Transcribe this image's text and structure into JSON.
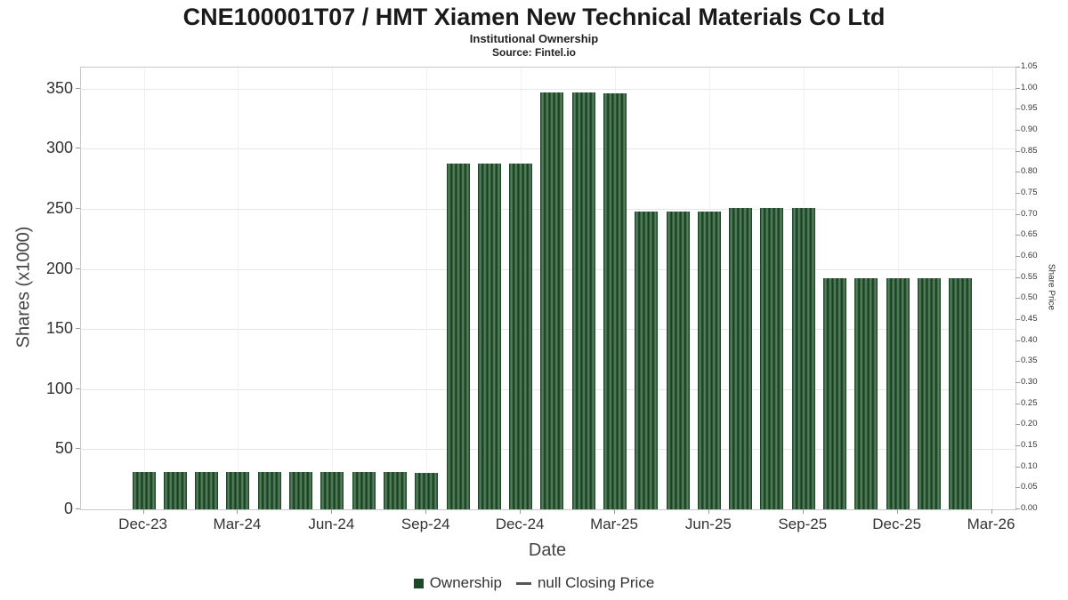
{
  "page": {
    "background": "#ffffff"
  },
  "chart_data": {
    "type": "bar",
    "title": "CNE100001T07 / HMT Xiamen New Technical Materials Co Ltd",
    "subtitle": "Institutional Ownership",
    "source": "Source: Fintel.io",
    "xlabel": "Date",
    "ylabel_left": "Shares (x1000)",
    "ylabel_right": "Share Price",
    "categories": [
      "Dec-23",
      "Jan-24",
      "Feb-24",
      "Mar-24",
      "Apr-24",
      "May-24",
      "Jun-24",
      "Jul-24",
      "Aug-24",
      "Sep-24",
      "Oct-24",
      "Nov-24",
      "Dec-24",
      "Jan-25",
      "Feb-25",
      "Mar-25",
      "Apr-25",
      "May-25",
      "Jun-25",
      "Jul-25",
      "Aug-25",
      "Sep-25",
      "Oct-25",
      "Nov-25",
      "Dec-25",
      "Jan-26",
      "Feb-26"
    ],
    "series": [
      {
        "name": "Ownership",
        "values": [
          31,
          31,
          31,
          31,
          31,
          31,
          31,
          31,
          31,
          30,
          288,
          288,
          288,
          347,
          347,
          346,
          248,
          248,
          248,
          251,
          251,
          251,
          192,
          192,
          192,
          192,
          192
        ]
      }
    ],
    "line_series": {
      "name": "null Closing Price",
      "values": []
    },
    "x_tick_labels": [
      "Dec-23",
      "Mar-24",
      "Jun-24",
      "Sep-24",
      "Dec-24",
      "Mar-25",
      "Jun-25",
      "Sep-25",
      "Dec-25",
      "Mar-26"
    ],
    "x_tick_month_indices": [
      0,
      3,
      6,
      9,
      12,
      15,
      18,
      21,
      24,
      27
    ],
    "x_range_months": [
      -2,
      27.75
    ],
    "y_left_ticks": [
      0,
      50,
      100,
      150,
      200,
      250,
      300,
      350
    ],
    "y_left_range": [
      0,
      367.5
    ],
    "y_right_ticks": [
      "0.00",
      "0.05",
      "0.10",
      "0.15",
      "0.20",
      "0.25",
      "0.30",
      "0.35",
      "0.40",
      "0.45",
      "0.50",
      "0.55",
      "0.60",
      "0.65",
      "0.70",
      "0.75",
      "0.80",
      "0.85",
      "0.90",
      "0.95",
      "1.00",
      "1.05"
    ],
    "y_right_range": [
      0,
      1.05
    ],
    "grid": true,
    "legend_position": "bottom",
    "legend": [
      {
        "label": "Ownership",
        "marker": "bar",
        "color": "#1c4a28"
      },
      {
        "label": "null Closing Price",
        "marker": "line",
        "color": "#555555"
      }
    ],
    "colors": {
      "bar_dark": "#10381b",
      "bar_light": "#5c8763",
      "grid": "#e6e6e6",
      "axis_text": "#333333"
    }
  }
}
